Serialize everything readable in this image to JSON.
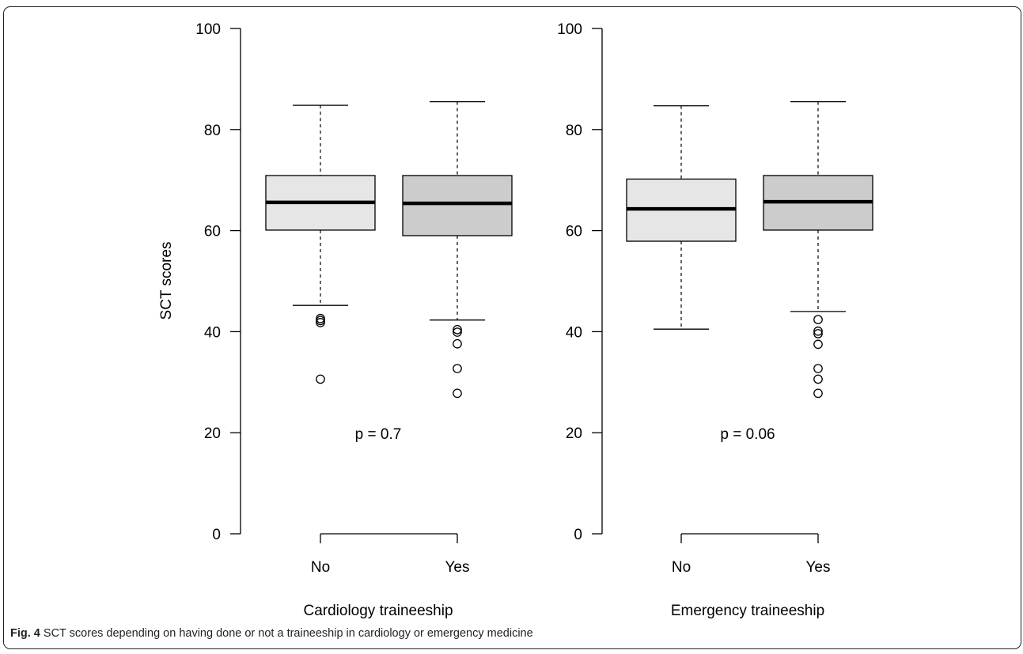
{
  "chart_data": [
    {
      "type": "boxplot",
      "xlabel": "Cardiology traineeship",
      "ylabel": "SCT scores",
      "ylim": [
        0,
        100
      ],
      "yticks": [
        0,
        20,
        40,
        60,
        80,
        100
      ],
      "categories": [
        "No",
        "Yes"
      ],
      "boxes": [
        {
          "category": "No",
          "whisker_low": 45.2,
          "q1": 60.1,
          "median": 65.6,
          "q3": 70.9,
          "whisker_high": 84.8,
          "outliers": [
            42.6,
            42.2,
            41.8,
            30.6
          ],
          "fill": "#e6e6e6"
        },
        {
          "category": "Yes",
          "whisker_low": 42.3,
          "q1": 59.0,
          "median": 65.4,
          "q3": 70.9,
          "whisker_high": 85.5,
          "outliers": [
            40.4,
            39.9,
            37.6,
            32.7,
            27.8
          ],
          "fill": "#cccccc"
        }
      ],
      "annotation": "p = 0.7"
    },
    {
      "type": "boxplot",
      "xlabel": "Emergency traineeship",
      "ylabel": "",
      "ylim": [
        0,
        100
      ],
      "yticks": [
        0,
        20,
        40,
        60,
        80,
        100
      ],
      "categories": [
        "No",
        "Yes"
      ],
      "boxes": [
        {
          "category": "No",
          "whisker_low": 40.5,
          "q1": 57.9,
          "median": 64.3,
          "q3": 70.2,
          "whisker_high": 84.7,
          "outliers": [],
          "fill": "#e6e6e6"
        },
        {
          "category": "Yes",
          "whisker_low": 44.0,
          "q1": 60.1,
          "median": 65.7,
          "q3": 70.9,
          "whisker_high": 85.5,
          "outliers": [
            42.4,
            40.1,
            39.6,
            37.5,
            32.7,
            30.6,
            27.8
          ],
          "fill": "#cccccc"
        }
      ],
      "annotation": "p = 0.06"
    }
  ],
  "caption": {
    "label": "Fig. 4",
    "text": " SCT scores depending on having done or not a traineeship in cardiology or emergency medicine"
  }
}
